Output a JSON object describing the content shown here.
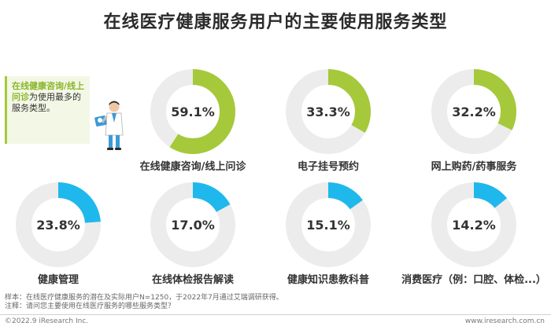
{
  "title": "在线医疗健康服务用户的主要使用服务类型",
  "callout": {
    "highlight": "在线健康咨询/线上问诊",
    "rest": "为使用最多的服务类型。"
  },
  "notes": {
    "sample": "样本：在线医疗健康服务的潜在及实际用户N=1250，于2022年7月通过艾瑞调研获得。",
    "question": "注释：请问您主要使用在线医疗服务的哪些服务类型？"
  },
  "footer": {
    "left": "©2022.9 iResearch Inc.",
    "right": "www.iresearch.com.cn"
  },
  "colors": {
    "green": "#a5c93a",
    "blue": "#1fb8ec",
    "track": "#ececec"
  },
  "chart_data": {
    "type": "pie",
    "unit": "%",
    "max": 100,
    "items": [
      {
        "label": "在线健康咨询/线上问诊",
        "value": 59.1,
        "display": "59.1%",
        "color": "green"
      },
      {
        "label": "电子挂号预约",
        "value": 33.3,
        "display": "33.3%",
        "color": "green"
      },
      {
        "label": "网上购药/药事服务",
        "value": 32.2,
        "display": "32.2%",
        "color": "green"
      },
      {
        "label": "健康管理",
        "value": 23.8,
        "display": "23.8%",
        "color": "blue"
      },
      {
        "label": "在线体检报告解读",
        "value": 17.0,
        "display": "17.0%",
        "color": "blue"
      },
      {
        "label": "健康知识患教科普",
        "value": 15.1,
        "display": "15.1%",
        "color": "blue"
      },
      {
        "label": "消费医疗（例：口腔、体检...）",
        "value": 14.2,
        "display": "14.2%",
        "color": "blue"
      }
    ]
  }
}
